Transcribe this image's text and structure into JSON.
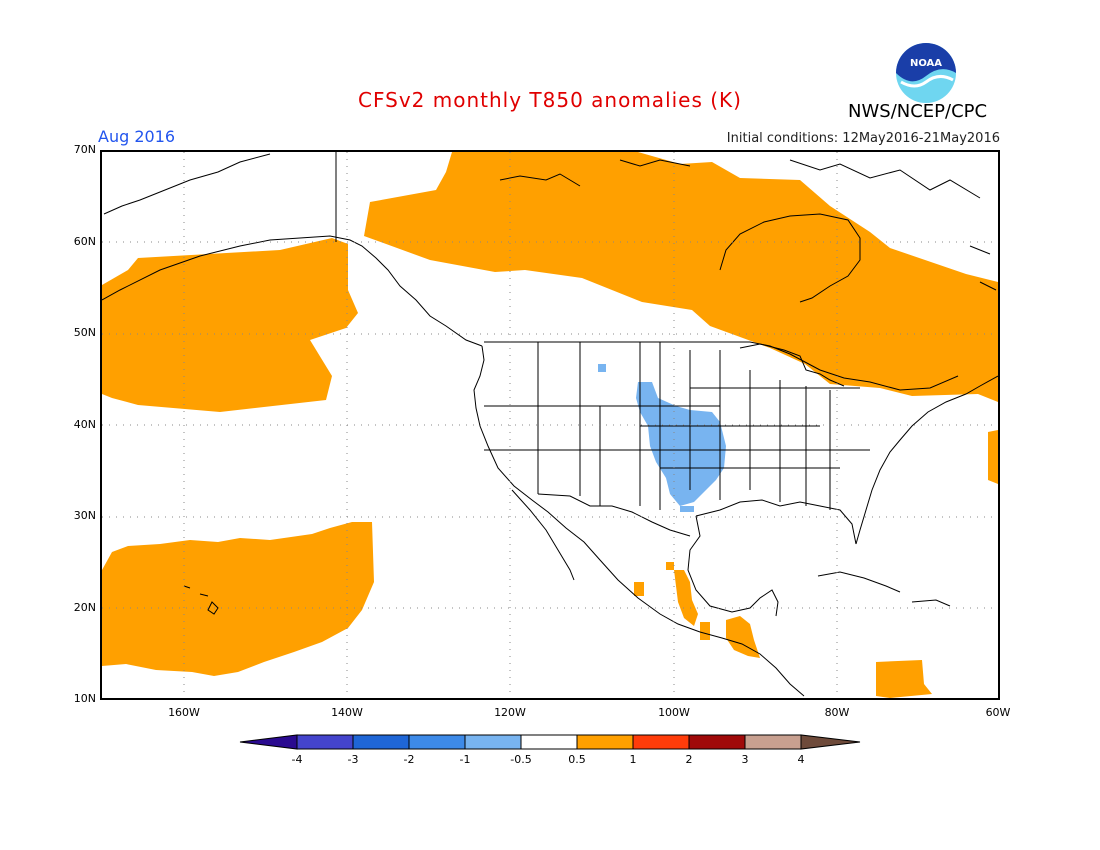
{
  "header": {
    "title": "CFSv2 monthly T850 anomalies (K)",
    "organization": "NWS/NCEP/CPC",
    "month": "Aug 2016",
    "initial_conditions": "Initial conditions: 12May2016-21May2016",
    "logo_text": "NOAA"
  },
  "colors": {
    "title": "#e00000",
    "month": "#2255ee",
    "warm_0p5_1": "#ffa000",
    "cool_m1_m0p5": "#78b4f0",
    "ocean_land_bg": "#ffffff"
  },
  "map": {
    "projection": "cylindrical",
    "lon_range": [
      -170,
      -60
    ],
    "lat_range": [
      10,
      70
    ],
    "grid": "dotted",
    "lat_labels": [
      "70N",
      "60N",
      "50N",
      "40N",
      "30N",
      "20N",
      "10N"
    ],
    "lon_labels": [
      "160W",
      "140W",
      "120W",
      "100W",
      "80W",
      "60W"
    ],
    "features": [
      "coastlines",
      "US state boundaries",
      "Canada/US border",
      "Mexico border",
      "Central America"
    ]
  },
  "colorbar": {
    "labels": [
      "-4",
      "-3",
      "-2",
      "-1",
      "-0.5",
      "0.5",
      "1",
      "2",
      "3",
      "4"
    ],
    "colors": [
      "#2a0a90",
      "#4444cc",
      "#1f66d6",
      "#3d8ae8",
      "#78b4f0",
      "#ffffff",
      "#ffa000",
      "#ff3c0a",
      "#a00a0a",
      "#c8a090",
      "#6e4a3a"
    ]
  }
}
